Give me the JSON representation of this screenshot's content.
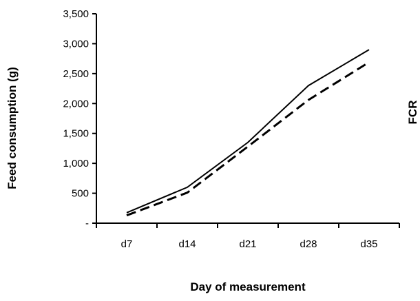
{
  "chart_data": {
    "type": "line",
    "title": "",
    "xlabel": "Day of measurement",
    "ylabel": "Feed consumption (g)",
    "y2label": "FCR",
    "categories": [
      "d7",
      "d14",
      "d21",
      "d28",
      "d35"
    ],
    "ylim": [
      0,
      3500
    ],
    "yticks": [
      0,
      500,
      1000,
      1500,
      2000,
      2500,
      3000,
      3500
    ],
    "ytick_labels": [
      "-",
      "500",
      "1,000",
      "1,500",
      "2,000",
      "2,500",
      "3,000",
      "3,500"
    ],
    "grid": false,
    "legend": "none",
    "series": [
      {
        "values": [
          175,
          600,
          1350,
          2300,
          2900
        ],
        "style": "solid",
        "color": "#000000"
      },
      {
        "values": [
          130,
          510,
          1280,
          2060,
          2690
        ],
        "style": "dashed",
        "color": "#000000"
      }
    ]
  }
}
